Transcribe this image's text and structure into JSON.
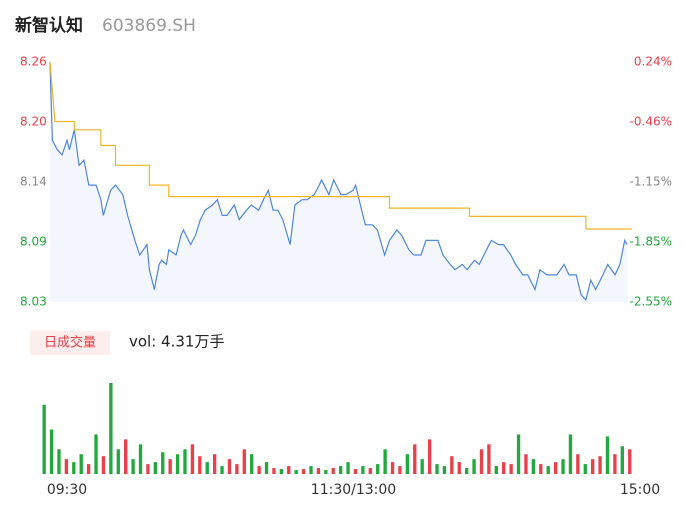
{
  "header": {
    "name": "新智认知",
    "code": "603869.SH"
  },
  "chart_data": [
    {
      "type": "line",
      "xlim": [
        0,
        240
      ],
      "xticks": [
        {
          "value": 0,
          "label": "09:30"
        },
        {
          "value": 120,
          "label": "11:30/13:00"
        },
        {
          "value": 240,
          "label": "15:00"
        }
      ],
      "ylim": [
        8.03,
        8.26
      ],
      "yticks": [
        {
          "value": 8.26,
          "label": "8.26"
        },
        {
          "value": 8.2025,
          "label": "8.20"
        },
        {
          "value": 8.1449,
          "label": "8.14"
        },
        {
          "value": 8.0875,
          "label": "8.09"
        },
        {
          "value": 8.03,
          "label": "8.03"
        }
      ],
      "y2lim": [
        -2.55,
        0.24
      ],
      "y2ticks": [
        {
          "value": 0.24,
          "label": "0.24%"
        },
        {
          "value": -0.4575,
          "label": "-0.46%"
        },
        {
          "value": -1.1549,
          "label": "-1.15%"
        },
        {
          "value": -1.8525,
          "label": "-1.85%"
        },
        {
          "value": -2.55,
          "label": "-2.55%"
        }
      ],
      "up_color": "#e8414a",
      "flat_color": "#888888",
      "down_color": "#23a83d",
      "series": [
        {
          "name": "price",
          "color": "#4f86e0",
          "x": [
            0,
            1,
            3,
            5,
            7,
            8,
            10,
            12,
            14,
            16,
            19,
            21,
            22,
            25,
            27,
            30,
            32,
            35,
            37,
            40,
            41,
            43,
            45,
            46,
            48,
            49,
            52,
            54,
            55,
            58,
            60,
            62,
            64,
            67,
            69,
            71,
            73,
            76,
            78,
            81,
            83,
            86,
            88,
            90,
            92,
            94,
            96,
            99,
            101,
            104,
            106,
            109,
            111,
            112,
            115,
            117,
            120,
            122,
            125,
            126,
            128,
            130,
            133,
            135,
            138,
            140,
            143,
            145,
            148,
            150,
            153,
            155,
            158,
            160,
            162,
            165,
            167,
            170,
            172,
            175,
            177,
            180,
            182,
            185,
            187,
            190,
            192,
            195,
            197,
            200,
            202,
            205,
            207,
            209,
            212,
            214,
            217,
            219,
            221,
            223,
            225,
            228,
            230,
            233,
            235,
            237,
            238
          ],
          "values": [
            8.26,
            8.185,
            8.176,
            8.171,
            8.185,
            8.176,
            8.195,
            8.161,
            8.166,
            8.142,
            8.142,
            8.128,
            8.113,
            8.137,
            8.142,
            8.133,
            8.113,
            8.089,
            8.075,
            8.085,
            8.061,
            8.042,
            8.066,
            8.07,
            8.066,
            8.08,
            8.075,
            8.094,
            8.099,
            8.085,
            8.094,
            8.109,
            8.118,
            8.123,
            8.128,
            8.113,
            8.113,
            8.123,
            8.109,
            8.118,
            8.123,
            8.118,
            8.128,
            8.137,
            8.118,
            8.118,
            8.109,
            8.085,
            8.123,
            8.128,
            8.128,
            8.133,
            8.142,
            8.147,
            8.133,
            8.147,
            8.133,
            8.133,
            8.137,
            8.142,
            8.123,
            8.104,
            8.104,
            8.099,
            8.075,
            8.089,
            8.099,
            8.094,
            8.08,
            8.075,
            8.075,
            8.089,
            8.089,
            8.089,
            8.075,
            8.066,
            8.061,
            8.066,
            8.061,
            8.07,
            8.066,
            8.08,
            8.089,
            8.085,
            8.085,
            8.075,
            8.066,
            8.056,
            8.056,
            8.042,
            8.061,
            8.056,
            8.056,
            8.056,
            8.066,
            8.056,
            8.056,
            8.037,
            8.032,
            8.051,
            8.042,
            8.056,
            8.066,
            8.056,
            8.066,
            8.089,
            8.085
          ]
        },
        {
          "name": "average",
          "color": "#f0b429",
          "x": [
            0,
            2,
            10,
            10,
            21,
            21,
            27,
            27,
            41,
            41,
            49,
            49,
            140,
            140,
            173,
            173,
            221,
            221,
            240
          ],
          "values": [
            8.26,
            8.203,
            8.203,
            8.195,
            8.195,
            8.18,
            8.18,
            8.161,
            8.161,
            8.142,
            8.142,
            8.131,
            8.131,
            8.12,
            8.12,
            8.112,
            8.112,
            8.1,
            8.1
          ]
        }
      ]
    },
    {
      "type": "volume",
      "legend": "日成交量",
      "label": "vol: 4.31万手",
      "values": [
        70,
        45,
        25,
        15,
        12,
        20,
        10,
        40,
        18,
        92,
        25,
        35,
        15,
        30,
        10,
        12,
        22,
        15,
        20,
        25,
        30,
        18,
        12,
        20,
        8,
        15,
        10,
        25,
        20,
        8,
        12,
        6,
        5,
        8,
        4,
        5,
        8,
        6,
        4,
        6,
        8,
        12,
        5,
        8,
        6,
        10,
        25,
        12,
        8,
        20,
        30,
        15,
        35,
        10,
        8,
        18,
        12,
        6,
        15,
        25,
        30,
        8,
        12,
        10,
        40,
        20,
        15,
        10,
        8,
        12,
        15,
        40,
        20,
        10,
        15,
        18,
        38,
        20,
        28,
        25
      ],
      "colors": [
        "#23a83d",
        "#23a83d",
        "#23a83d",
        "#e8414a",
        "#23a83d",
        "#23a83d",
        "#e8414a",
        "#23a83d",
        "#e8414a",
        "#23a83d",
        "#23a83d",
        "#e8414a",
        "#23a83d",
        "#23a83d",
        "#e8414a",
        "#23a83d",
        "#23a83d",
        "#e8414a",
        "#23a83d",
        "#23a83d",
        "#e8414a",
        "#e8414a",
        "#23a83d",
        "#e8414a",
        "#23a83d",
        "#e8414a",
        "#e8414a",
        "#e8414a",
        "#23a83d",
        "#e8414a",
        "#23a83d",
        "#e8414a",
        "#23a83d",
        "#e8414a",
        "#23a83d",
        "#e8414a",
        "#23a83d",
        "#e8414a",
        "#23a83d",
        "#e8414a",
        "#23a83d",
        "#23a83d",
        "#e8414a",
        "#23a83d",
        "#e8414a",
        "#23a83d",
        "#23a83d",
        "#e8414a",
        "#e8414a",
        "#23a83d",
        "#e8414a",
        "#23a83d",
        "#e8414a",
        "#23a83d",
        "#23a83d",
        "#e8414a",
        "#e8414a",
        "#23a83d",
        "#23a83d",
        "#e8414a",
        "#e8414a",
        "#23a83d",
        "#e8414a",
        "#e8414a",
        "#23a83d",
        "#e8414a",
        "#23a83d",
        "#e8414a",
        "#23a83d",
        "#e8414a",
        "#23a83d",
        "#23a83d",
        "#e8414a",
        "#23a83d",
        "#e8414a",
        "#e8414a",
        "#23a83d",
        "#e8414a",
        "#23a83d",
        "#e8414a"
      ]
    }
  ]
}
